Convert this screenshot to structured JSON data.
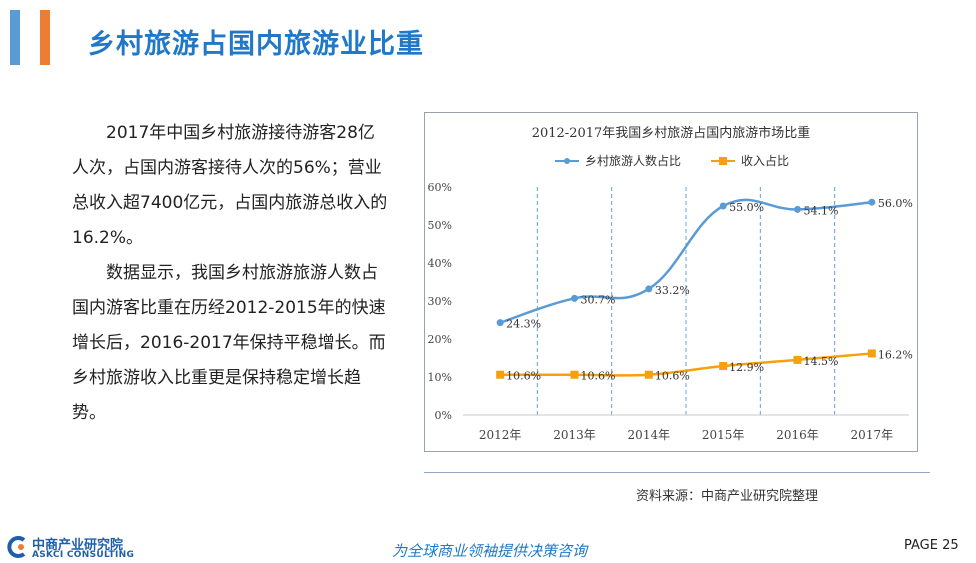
{
  "header": {
    "title": "乡村旅游占国内旅游业比重"
  },
  "body": {
    "paragraphs": [
      "2017年中国乡村旅游接待游客28亿人次，占国内游客接待人次的56%；营业总收入超7400亿元，占国内旅游总收入的16.2%。",
      "数据显示，我国乡村旅游旅游人数占国内游客比重在历经2012-2015年的快速增长后，2016-2017年保持平稳增长。而乡村旅游收入比重更是保持稳定增长趋势。"
    ]
  },
  "chart_data": {
    "type": "line",
    "title": "2012-2017年我国乡村旅游占国内旅游市场比重",
    "categories": [
      "2012年",
      "2013年",
      "2014年",
      "2015年",
      "2016年",
      "2017年"
    ],
    "series": [
      {
        "name": "乡村旅游人数占比",
        "values": [
          24.3,
          30.7,
          33.2,
          55.0,
          54.1,
          56.0
        ],
        "labels": [
          "24.3%",
          "30.7%",
          "33.2%",
          "55.0%",
          "54.1%",
          "56.0%"
        ],
        "color": "#5b9bd5",
        "marker": "circle",
        "smooth": true
      },
      {
        "name": "收入占比",
        "values": [
          10.6,
          10.6,
          10.6,
          12.9,
          14.5,
          16.2
        ],
        "labels": [
          "10.6%",
          "10.6%",
          "10.6%",
          "12.9%",
          "14.5%",
          "16.2%"
        ],
        "color": "#f5a00c",
        "marker": "square",
        "smooth": true
      }
    ],
    "yticks": [
      "0%",
      "10%",
      "20%",
      "30%",
      "40%",
      "50%",
      "60%"
    ],
    "ylim": [
      0,
      60
    ],
    "grid": "vertical-dashed",
    "legend": "top"
  },
  "footer": {
    "source": "资料来源：中商产业研究院整理",
    "logo_cn": "中商产业研究院",
    "logo_en": "ASKCI CONSULTING",
    "slogan": "为全球商业领袖提供决策咨询",
    "page": "PAGE 25"
  }
}
